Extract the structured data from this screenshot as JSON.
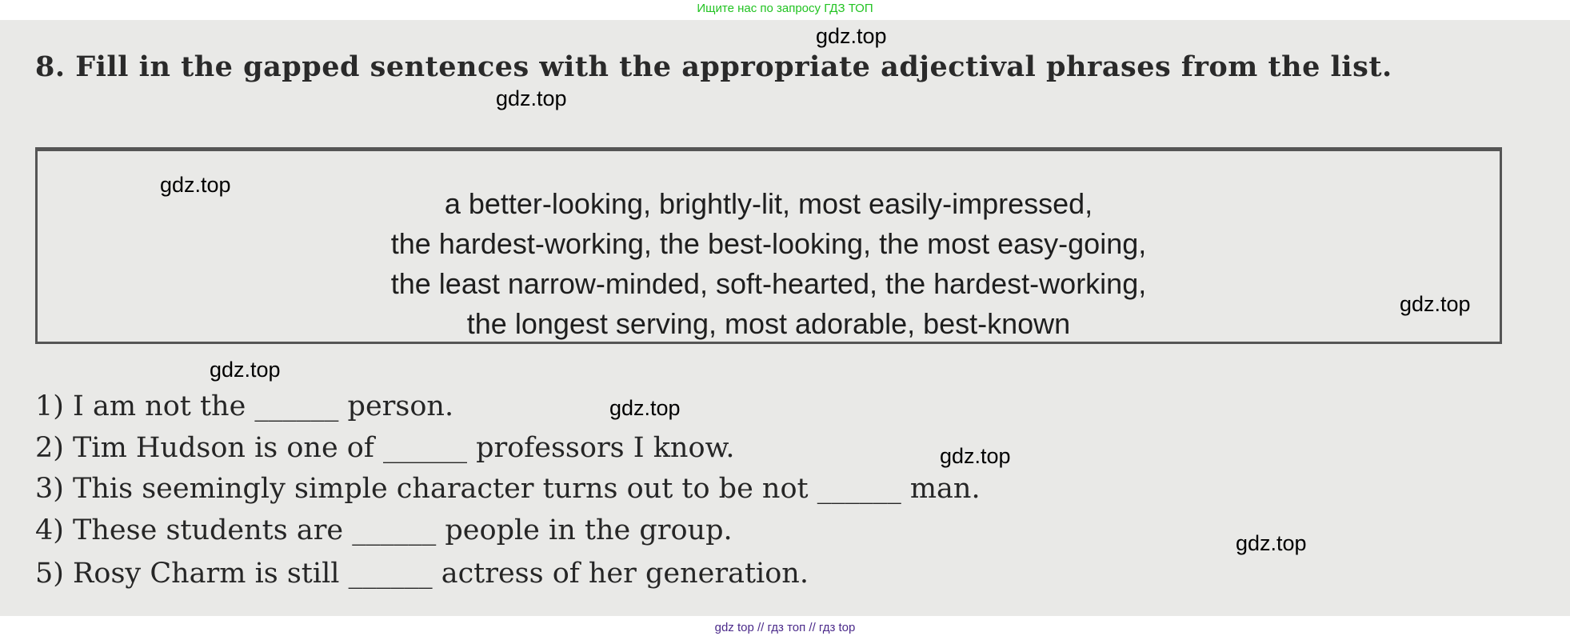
{
  "header_notice": "Ищите нас по запросу ГДЗ ТОП",
  "footer_notice": "gdz top  //  гдз топ  //  гдз top",
  "exercise": {
    "title": "8. Fill in the gapped sentences with the appropriate adjectival phrases from the list.",
    "word_box": [
      "a better-looking, brightly-lit, most easily-impressed,",
      "the hardest-working, the best-looking, the most easy-going,",
      "the least narrow-minded, soft-hearted, the hardest-working,",
      "the longest serving, most adorable, best-known"
    ],
    "sentences": [
      "1) I am not the ______ person.",
      "2) Tim Hudson is one of ______ professors I know.",
      "3) This seemingly simple character turns out to be not ______ man.",
      "4) These students are ______ people in the group.",
      "5) Rosy Charm is still ______ actress of her generation."
    ]
  },
  "watermarks": [
    "gdz.top",
    "gdz.top",
    "gdz.top",
    "gdz.top",
    "gdz.top",
    "gdz.top",
    "gdz.top",
    "gdz.top"
  ]
}
